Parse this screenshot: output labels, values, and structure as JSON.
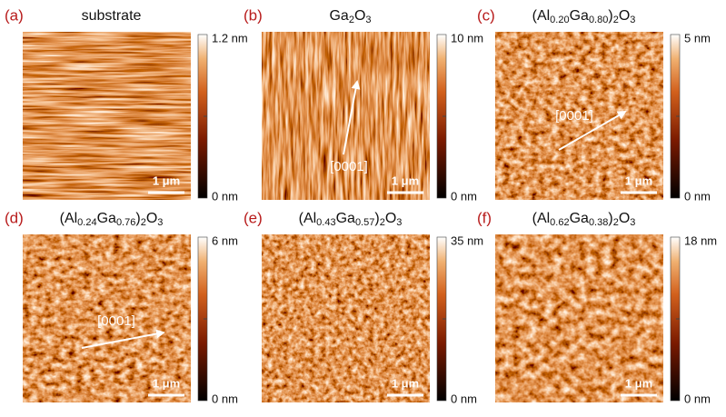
{
  "panels": [
    {
      "label": "(a)",
      "title_parts": [
        "substrate"
      ],
      "colorbar_max": "1.2 nm",
      "colorbar_min": "0 nm",
      "scale_bar": "1 μm"
    },
    {
      "label": "(b)",
      "title_parts": [
        "Ga",
        "2",
        "O",
        "3"
      ],
      "colorbar_max": "10 nm",
      "colorbar_min": "0 nm",
      "scale_bar": "1 μm",
      "direction": "[0001]"
    },
    {
      "label": "(c)",
      "title_parts": [
        "(Al",
        "0.20",
        "Ga",
        "0.80",
        ")",
        "2",
        "O",
        "3"
      ],
      "colorbar_max": "5 nm",
      "colorbar_min": "0 nm",
      "scale_bar": "1 μm",
      "direction": "[0001]"
    },
    {
      "label": "(d)",
      "title_parts": [
        "(Al",
        "0.24",
        "Ga",
        "0.76",
        ")",
        "2",
        "O",
        "3"
      ],
      "colorbar_max": "6 nm",
      "colorbar_min": "0 nm",
      "scale_bar": "1 μm",
      "direction": "[0001]"
    },
    {
      "label": "(e)",
      "title_parts": [
        "(Al",
        "0.43",
        "Ga",
        "0.57",
        ")",
        "2",
        "O",
        "3"
      ],
      "colorbar_max": "35 nm",
      "colorbar_min": "0 nm",
      "scale_bar": "1 μm"
    },
    {
      "label": "(f)",
      "title_parts": [
        "(Al",
        "0.62",
        "Ga",
        "0.38",
        ")",
        "2",
        "O",
        "3"
      ],
      "colorbar_max": "18 nm",
      "colorbar_min": "0 nm",
      "scale_bar": "1 μm"
    }
  ]
}
